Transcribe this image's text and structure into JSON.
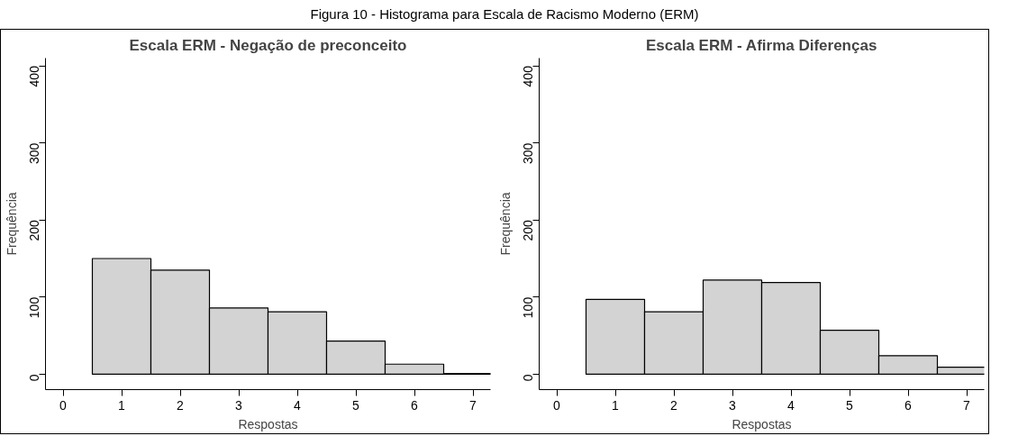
{
  "chart_data": [
    {
      "type": "other",
      "title": "Figura 10 - Histograma para Escala de Racismo Moderno (ERM)"
    },
    {
      "type": "histogram",
      "title": "Escala ERM - Negação de preconceito",
      "xlabel": "Respostas",
      "ylabel": "Frequência",
      "bins": [
        0.5,
        1.5,
        2.5,
        3.5,
        4.5,
        5.5,
        6.5,
        7.5
      ],
      "values": [
        150,
        135,
        86,
        81,
        43,
        13,
        1
      ],
      "color": "#d3d3d3",
      "xlim": [
        -0.3,
        7.3
      ],
      "ylim": [
        -20,
        410
      ],
      "xticks": [
        0,
        1,
        2,
        3,
        4,
        5,
        6,
        7
      ],
      "yticks": [
        0,
        100,
        200,
        300,
        400
      ],
      "grid": false
    },
    {
      "type": "histogram",
      "title": "Escala ERM - Afirma Diferenças",
      "xlabel": "Respostas",
      "ylabel": "Frequência",
      "bins": [
        0.5,
        1.5,
        2.5,
        3.5,
        4.5,
        5.5,
        6.5,
        7.5
      ],
      "values": [
        97,
        81,
        122,
        119,
        57,
        24,
        9
      ],
      "color": "#d3d3d3",
      "xlim": [
        -0.3,
        7.3
      ],
      "ylim": [
        -20,
        410
      ],
      "xticks": [
        0,
        1,
        2,
        3,
        4,
        5,
        6,
        7
      ],
      "yticks": [
        0,
        100,
        200,
        300,
        400
      ],
      "grid": false
    }
  ]
}
